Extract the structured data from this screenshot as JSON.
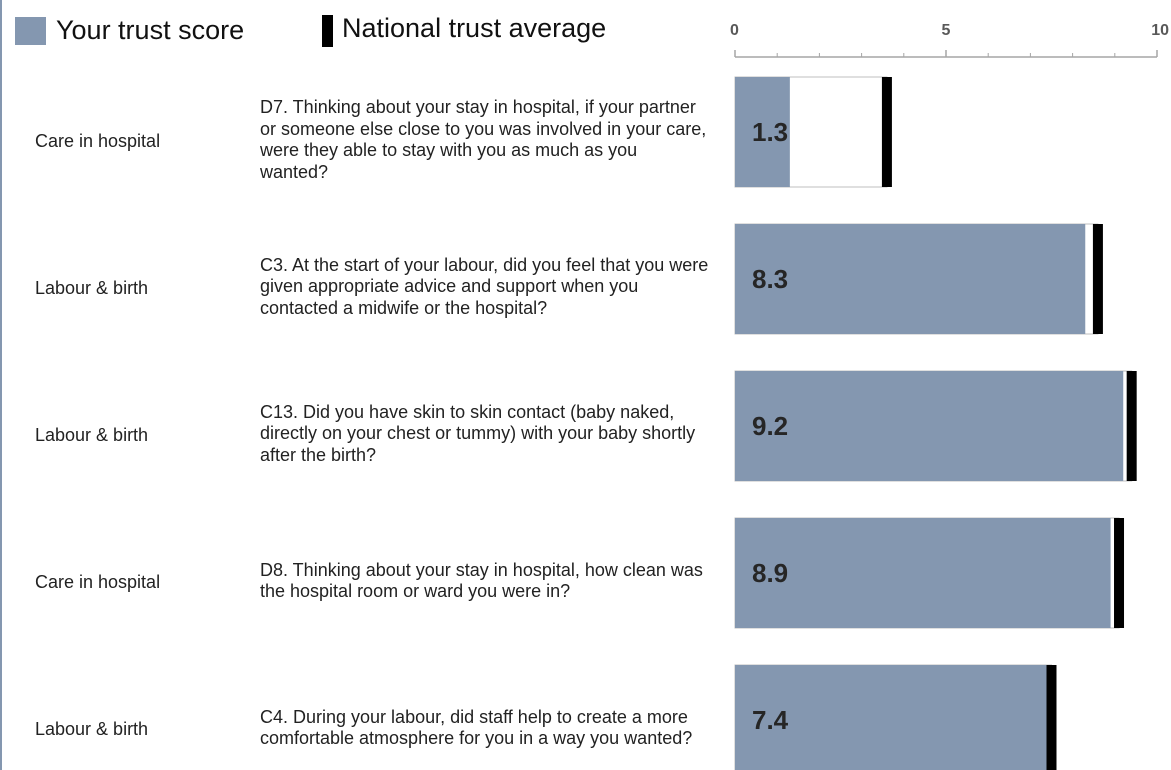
{
  "chart_data": {
    "type": "bar",
    "orientation": "horizontal",
    "categories": [
      "Care in hospital",
      "Labour & birth",
      "Labour & birth",
      "Care in hospital",
      "Labour & birth"
    ],
    "questions": [
      "D7. Thinking about your stay in hospital, if your partner or someone else close to you was involved in your care, were they able to stay with you as much as you wanted?",
      "C3. At the start of your labour, did you feel that you were given appropriate advice and support when you contacted a midwife or the hospital?",
      "C13. Did you have skin to skin contact (baby naked, directly on your chest or tummy) with your baby shortly after the birth?",
      "D8. Thinking about your stay in hospital, how clean was the hospital room or ward you were in?",
      "C4. During your labour, did staff help to create a more comfortable atmosphere for you in a way you wanted?"
    ],
    "series": [
      {
        "name": "Your trust score",
        "color": "#8497b0",
        "values": [
          1.3,
          8.3,
          9.2,
          8.9,
          7.4
        ]
      },
      {
        "name": "National trust average",
        "color": "#000000",
        "values": [
          3.6,
          8.6,
          9.4,
          9.1,
          7.5
        ]
      }
    ],
    "xlim": [
      0,
      10
    ],
    "xticks": [
      0,
      5,
      10
    ],
    "minor_xticks": [
      1,
      2,
      3,
      4,
      6,
      7,
      8,
      9
    ]
  }
}
